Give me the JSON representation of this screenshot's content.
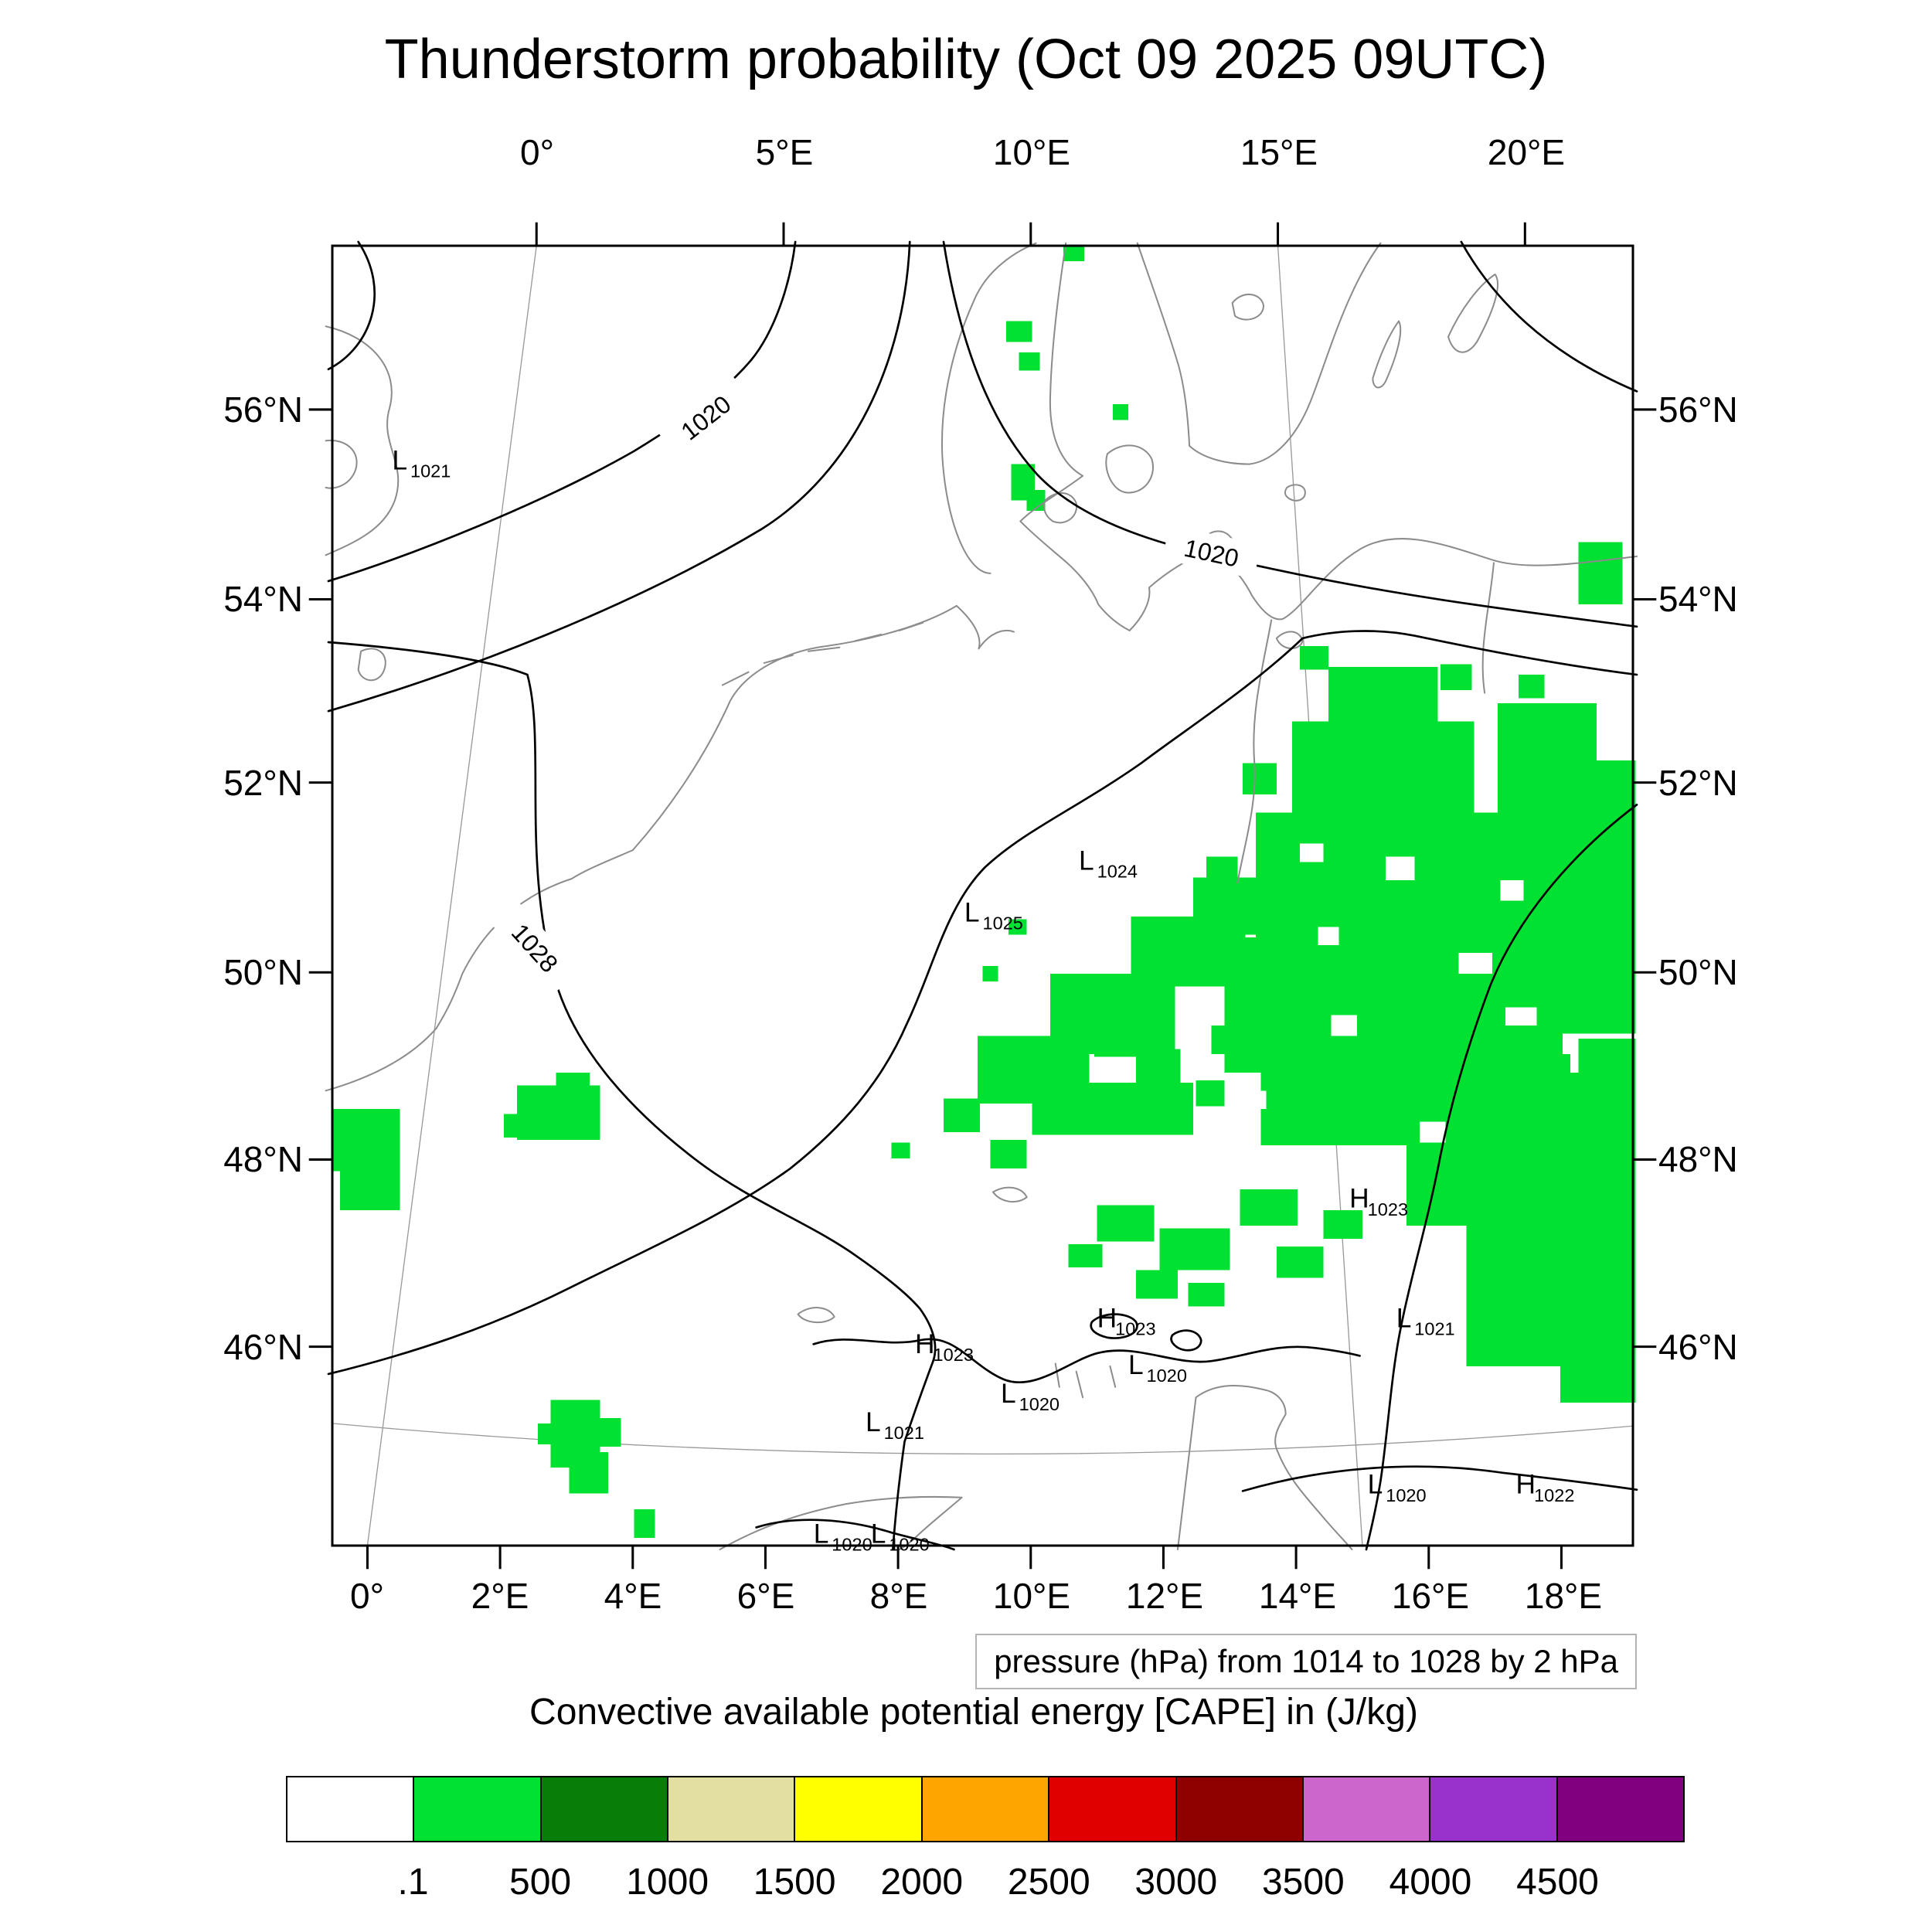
{
  "title": "Thunderstorm probability (Oct 09 2025 09UTC)",
  "axes": {
    "top_labels": [
      "0°",
      "5°E",
      "10°E",
      "15°E",
      "20°E"
    ],
    "bottom_labels": [
      "0°",
      "2°E",
      "4°E",
      "6°E",
      "8°E",
      "10°E",
      "12°E",
      "14°E",
      "16°E",
      "18°E"
    ],
    "left_labels": [
      "56°N",
      "54°N",
      "52°N",
      "50°N",
      "48°N",
      "46°N"
    ],
    "right_labels": [
      "56°N",
      "54°N",
      "52°N",
      "50°N",
      "48°N",
      "46°N"
    ]
  },
  "map": {
    "contour_labels": [
      {
        "text": "1020"
      },
      {
        "text": "1020"
      },
      {
        "text": "1028"
      }
    ],
    "centers": [
      {
        "letter": "L",
        "value": "1021"
      },
      {
        "letter": "L",
        "value": "1024"
      },
      {
        "letter": "L",
        "value": "1025"
      },
      {
        "letter": "H",
        "value": "1023"
      },
      {
        "letter": "H",
        "value": "1023"
      },
      {
        "letter": "L",
        "value": "1021"
      },
      {
        "letter": "L",
        "value": "1020"
      },
      {
        "letter": "H",
        "value": "1023"
      },
      {
        "letter": "L",
        "value": "1020"
      },
      {
        "letter": "L",
        "value": "1021"
      },
      {
        "letter": "L",
        "value": "1020"
      },
      {
        "letter": "H",
        "value": "1022"
      },
      {
        "letter": "L",
        "value": "1020"
      },
      {
        "letter": "L",
        "value": "1020"
      }
    ],
    "cape_fill_color": "#00e132",
    "coast_color": "#8c8c8c",
    "contour_color": "#000000"
  },
  "captions": {
    "pressure": "pressure (hPa) from 1014 to 1028 by 2 hPa"
  },
  "colorbar": {
    "title": "Convective available potential energy [CAPE] in (J/kg)",
    "tick_labels": [
      ".1",
      "500",
      "1000",
      "1500",
      "2000",
      "2500",
      "3000",
      "3500",
      "4000",
      "4500"
    ],
    "colors": [
      "#ffffff",
      "#00e132",
      "#077e07",
      "#e3dfa2",
      "#ffff00",
      "#ffa500",
      "#e00000",
      "#8f0000",
      "#cc66cc",
      "#9932cc",
      "#800080"
    ]
  }
}
